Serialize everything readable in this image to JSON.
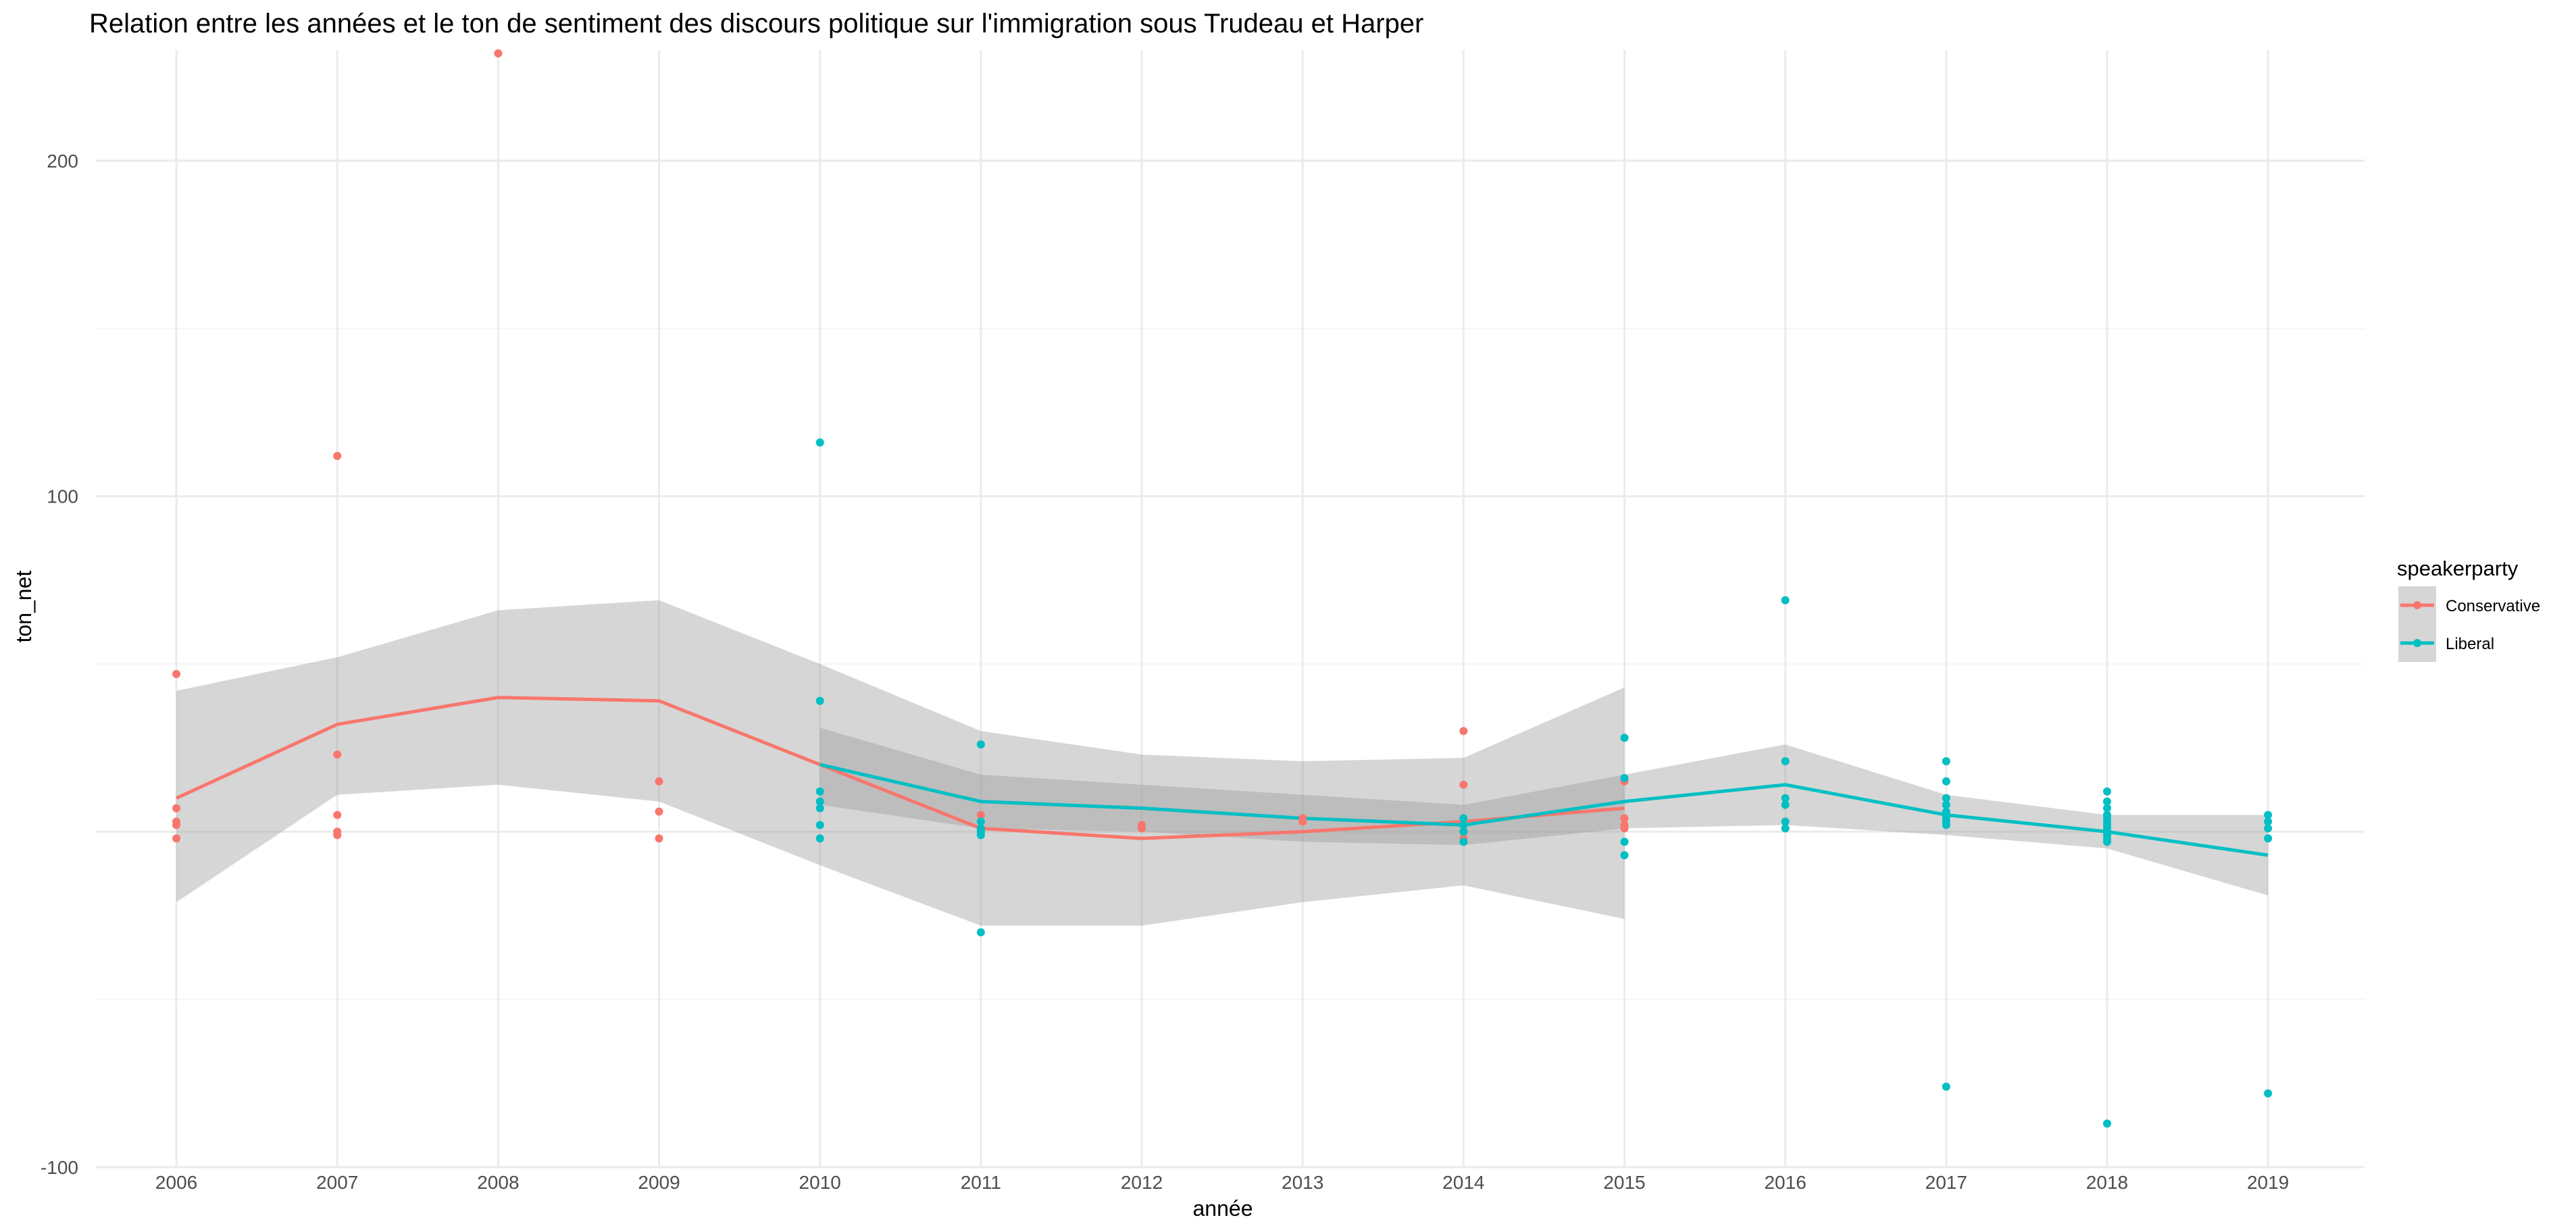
{
  "chart_data": {
    "type": "scatter",
    "title": "Relation entre les années et le ton de sentiment des discours politique sur l'immigration sous Trudeau et Harper",
    "xlabel": "année",
    "ylabel": "ton_net",
    "x_ticks": [
      "2006",
      "2007",
      "2008",
      "2009",
      "2010",
      "2011",
      "2012",
      "2013",
      "2014",
      "2015",
      "2016",
      "2017",
      "2018",
      "2019"
    ],
    "y_ticks": [
      -100,
      100,
      200
    ],
    "xlim": [
      2005.5,
      2019.6
    ],
    "ylim": [
      -100,
      233
    ],
    "grid": true,
    "legend": {
      "title": "speakerparty",
      "position": "right",
      "entries": [
        "Conservative",
        "Liberal"
      ]
    },
    "colors": {
      "Conservative": "#F8766D",
      "Liberal": "#00BFC4",
      "ribbon": "#999999",
      "grid_major": "#EBEBEB",
      "grid_minor": "#F5F5F5"
    },
    "series": [
      {
        "name": "Conservative",
        "points": [
          [
            2006,
            47
          ],
          [
            2006,
            7
          ],
          [
            2006,
            3
          ],
          [
            2006,
            2
          ],
          [
            2006,
            -2
          ],
          [
            2007,
            112
          ],
          [
            2007,
            23
          ],
          [
            2007,
            5
          ],
          [
            2007,
            0
          ],
          [
            2007,
            -1
          ],
          [
            2008,
            232
          ],
          [
            2009,
            15
          ],
          [
            2009,
            6
          ],
          [
            2009,
            -2
          ],
          [
            2011,
            5
          ],
          [
            2011,
            3
          ],
          [
            2011,
            1
          ],
          [
            2011,
            0
          ],
          [
            2012,
            2
          ],
          [
            2012,
            1
          ],
          [
            2013,
            4
          ],
          [
            2013,
            3
          ],
          [
            2014,
            30
          ],
          [
            2014,
            14
          ],
          [
            2014,
            3
          ],
          [
            2014,
            0
          ],
          [
            2014,
            -2
          ],
          [
            2015,
            15
          ],
          [
            2015,
            4
          ],
          [
            2015,
            2
          ],
          [
            2015,
            1
          ]
        ],
        "smooth": [
          [
            2006,
            10
          ],
          [
            2007,
            32
          ],
          [
            2008,
            40
          ],
          [
            2009,
            39
          ],
          [
            2010,
            20
          ],
          [
            2011,
            1
          ],
          [
            2012,
            -2
          ],
          [
            2013,
            0
          ],
          [
            2014,
            3
          ],
          [
            2015,
            7
          ]
        ],
        "band_upper": [
          [
            2006,
            42
          ],
          [
            2007,
            52
          ],
          [
            2008,
            66
          ],
          [
            2009,
            69
          ],
          [
            2010,
            50
          ],
          [
            2011,
            30
          ],
          [
            2012,
            23
          ],
          [
            2013,
            21
          ],
          [
            2014,
            22
          ],
          [
            2015,
            43
          ]
        ],
        "band_lower": [
          [
            2006,
            -21
          ],
          [
            2007,
            11
          ],
          [
            2008,
            14
          ],
          [
            2009,
            9
          ],
          [
            2010,
            -10
          ],
          [
            2011,
            -28
          ],
          [
            2012,
            -28
          ],
          [
            2013,
            -21
          ],
          [
            2014,
            -16
          ],
          [
            2015,
            -26
          ]
        ]
      },
      {
        "name": "Liberal",
        "points": [
          [
            2010,
            116
          ],
          [
            2010,
            39
          ],
          [
            2010,
            12
          ],
          [
            2010,
            9
          ],
          [
            2010,
            7
          ],
          [
            2010,
            2
          ],
          [
            2010,
            -2
          ],
          [
            2011,
            26
          ],
          [
            2011,
            3
          ],
          [
            2011,
            1
          ],
          [
            2011,
            0
          ],
          [
            2011,
            -1
          ],
          [
            2011,
            -30
          ],
          [
            2014,
            4
          ],
          [
            2014,
            2
          ],
          [
            2014,
            0
          ],
          [
            2014,
            -3
          ],
          [
            2015,
            28
          ],
          [
            2015,
            16
          ],
          [
            2015,
            -3
          ],
          [
            2015,
            -7
          ],
          [
            2016,
            69
          ],
          [
            2016,
            21
          ],
          [
            2016,
            10
          ],
          [
            2016,
            8
          ],
          [
            2016,
            3
          ],
          [
            2016,
            1
          ],
          [
            2017,
            21
          ],
          [
            2017,
            15
          ],
          [
            2017,
            10
          ],
          [
            2017,
            8
          ],
          [
            2017,
            6
          ],
          [
            2017,
            5
          ],
          [
            2017,
            4
          ],
          [
            2017,
            3
          ],
          [
            2017,
            2
          ],
          [
            2017,
            -76
          ],
          [
            2018,
            12
          ],
          [
            2018,
            9
          ],
          [
            2018,
            7
          ],
          [
            2018,
            5
          ],
          [
            2018,
            4
          ],
          [
            2018,
            3
          ],
          [
            2018,
            2
          ],
          [
            2018,
            1
          ],
          [
            2018,
            0
          ],
          [
            2018,
            -1
          ],
          [
            2018,
            -2
          ],
          [
            2018,
            -3
          ],
          [
            2018,
            -87
          ],
          [
            2019,
            5
          ],
          [
            2019,
            3
          ],
          [
            2019,
            1
          ],
          [
            2019,
            -2
          ],
          [
            2019,
            -78
          ]
        ],
        "smooth": [
          [
            2010,
            20
          ],
          [
            2011,
            9
          ],
          [
            2012,
            7
          ],
          [
            2013,
            4
          ],
          [
            2014,
            2
          ],
          [
            2015,
            9
          ],
          [
            2016,
            14
          ],
          [
            2017,
            5
          ],
          [
            2018,
            0
          ],
          [
            2019,
            -7
          ]
        ],
        "band_upper": [
          [
            2010,
            31
          ],
          [
            2011,
            17
          ],
          [
            2012,
            14
          ],
          [
            2013,
            11
          ],
          [
            2014,
            8
          ],
          [
            2015,
            17
          ],
          [
            2016,
            26
          ],
          [
            2017,
            11
          ],
          [
            2018,
            5
          ],
          [
            2019,
            5
          ]
        ],
        "band_lower": [
          [
            2010,
            8
          ],
          [
            2011,
            1
          ],
          [
            2012,
            0
          ],
          [
            2013,
            -3
          ],
          [
            2014,
            -4
          ],
          [
            2015,
            1
          ],
          [
            2016,
            2
          ],
          [
            2017,
            -1
          ],
          [
            2018,
            -5
          ],
          [
            2019,
            -19
          ]
        ]
      }
    ]
  }
}
